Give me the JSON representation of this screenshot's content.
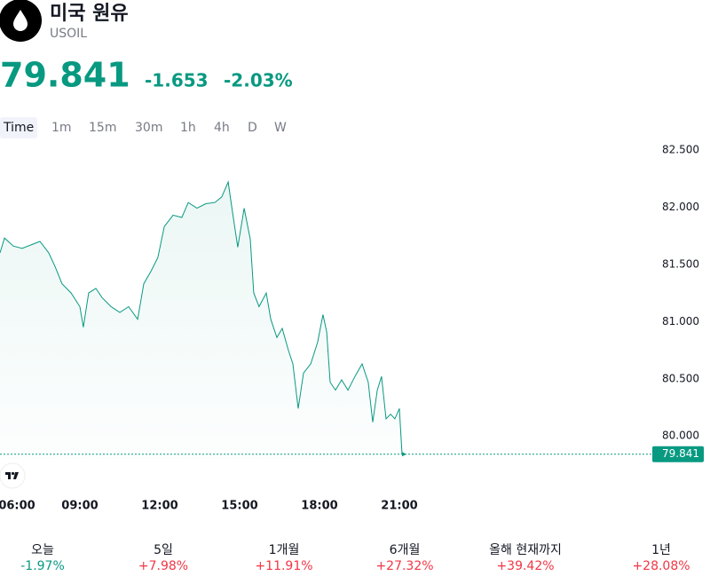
{
  "header": {
    "title": "미국 원유",
    "symbol": "USOIL",
    "price": "79.841",
    "change": "-1.653",
    "change_percent": "-2.03%",
    "price_color": "#089981"
  },
  "timeframes": [
    "Time",
    "1m",
    "15m",
    "30m",
    "1h",
    "4h",
    "D",
    "W"
  ],
  "chart_data": {
    "type": "area",
    "x": [
      6,
      6.17,
      6.5,
      6.83,
      7.17,
      7.5,
      7.83,
      8.07,
      8.33,
      8.67,
      9,
      9.13,
      9.33,
      9.6,
      9.83,
      10.17,
      10.5,
      10.83,
      11.17,
      11.4,
      11.67,
      11.93,
      12.17,
      12.5,
      12.83,
      13.07,
      13.4,
      13.73,
      14.07,
      14.33,
      14.57,
      14.73,
      14.93,
      15.17,
      15.4,
      15.53,
      15.73,
      16,
      16.17,
      16.4,
      16.6,
      16.83,
      17,
      17.2,
      17.4,
      17.67,
      17.93,
      18.13,
      18.27,
      18.4,
      18.6,
      18.83,
      19.07,
      19.33,
      19.6,
      19.83,
      20,
      20.17,
      20.33,
      20.5,
      20.67,
      20.83,
      21,
      21.1
    ],
    "series": [
      {
        "name": "USOIL",
        "color": "#089981",
        "values": [
          81.6,
          81.73,
          81.66,
          81.64,
          81.67,
          81.7,
          81.6,
          81.48,
          81.33,
          81.25,
          81.13,
          80.95,
          81.25,
          81.29,
          81.21,
          81.13,
          81.08,
          81.13,
          81.02,
          81.33,
          81.44,
          81.56,
          81.83,
          81.93,
          81.91,
          82.04,
          81.99,
          82.03,
          82.04,
          82.09,
          82.22,
          81.96,
          81.65,
          81.99,
          81.72,
          81.25,
          81.13,
          81.25,
          81.02,
          80.86,
          80.94,
          80.75,
          80.63,
          80.24,
          80.55,
          80.63,
          80.82,
          81.06,
          80.91,
          80.47,
          80.4,
          80.49,
          80.4,
          80.52,
          80.63,
          80.47,
          80.12,
          80.4,
          80.52,
          80.15,
          80.19,
          80.15,
          80.24,
          79.841
        ]
      }
    ],
    "xlim": [
      6,
      30.5
    ],
    "xticks": [
      {
        "value": 6,
        "label": "06:00"
      },
      {
        "value": 9,
        "label": "09:00"
      },
      {
        "value": 12,
        "label": "12:00"
      },
      {
        "value": 15,
        "label": "15:00"
      },
      {
        "value": 18,
        "label": "18:00"
      },
      {
        "value": 21,
        "label": "21:00"
      }
    ],
    "ylim": [
      79.8,
      82.6
    ],
    "yticks": [
      {
        "value": 80,
        "label": "80.000"
      },
      {
        "value": 80.5,
        "label": "80.500"
      },
      {
        "value": 81,
        "label": "81.000"
      },
      {
        "value": 81.5,
        "label": "81.500"
      },
      {
        "value": 82,
        "label": "82.000"
      },
      {
        "value": 82.5,
        "label": "82.500"
      }
    ]
  },
  "performance": [
    {
      "label": "오늘",
      "value": "-1.97%",
      "color": "#089981"
    },
    {
      "label": "5일",
      "value": "+7.98%",
      "color": "#f23645"
    },
    {
      "label": "1개월",
      "value": "+11.91%",
      "color": "#f23645"
    },
    {
      "label": "6개월",
      "value": "+27.32%",
      "color": "#f23645"
    },
    {
      "label": "올해 현재까지",
      "value": "+39.42%",
      "color": "#f23645"
    },
    {
      "label": "1년",
      "value": "+28.08%",
      "color": "#f23645"
    }
  ]
}
